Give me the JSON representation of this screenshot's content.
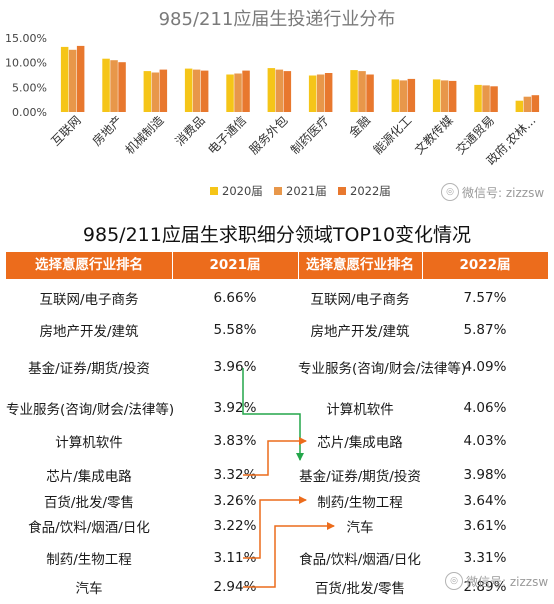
{
  "chart_data": {
    "type": "bar",
    "title": "985/211应届生投递行业分布",
    "categories": [
      "互联网",
      "房地产",
      "机械制造",
      "消费品",
      "电子通信",
      "服务外包",
      "制药医疗",
      "金融",
      "能源化工",
      "文教传媒",
      "交通贸易",
      "政府,农林..."
    ],
    "series": [
      {
        "name": "2020届",
        "color": "#f5c518",
        "values": [
          13.2,
          10.8,
          8.3,
          8.8,
          7.6,
          8.9,
          7.4,
          8.5,
          6.6,
          6.6,
          5.5,
          2.3
        ]
      },
      {
        "name": "2021届",
        "color": "#e8974a",
        "values": [
          12.6,
          10.5,
          8.0,
          8.6,
          7.8,
          8.6,
          7.6,
          8.3,
          6.4,
          6.4,
          5.4,
          3.1
        ]
      },
      {
        "name": "2022届",
        "color": "#e8782e",
        "values": [
          13.4,
          10.1,
          8.6,
          8.4,
          8.4,
          8.3,
          7.9,
          7.6,
          6.7,
          6.3,
          5.2,
          3.4
        ]
      }
    ],
    "y_ticks": [
      "15.00%",
      "10.00%",
      "5.00%",
      "0.00%"
    ],
    "ylim": [
      0,
      15
    ],
    "legend_placement": "bottom"
  },
  "watermark": "微信号: zizzsw",
  "table": {
    "title": "985/211应届生求职细分领域TOP10变化情况",
    "header": {
      "col1": "选择意愿行业排名",
      "col2": "2021届",
      "col3": "选择意愿行业排名",
      "col4": "2022届"
    },
    "header_color": "#ec6c1c",
    "rows": [
      {
        "a": "互联网/电子商务",
        "av": "6.66%",
        "b": "互联网/电子商务",
        "bv": "7.57%"
      },
      {
        "a": "房地产开发/建筑",
        "av": "5.58%",
        "b": "房地产开发/建筑",
        "bv": "5.87%"
      },
      {
        "a": "基金/证券/期货/投资",
        "av": "3.96%",
        "b": "专业服务(咨询/财会/法律等)",
        "bv": "4.09%"
      },
      {
        "a": "专业服务(咨询/财会/法律等)",
        "av": "3.92%",
        "b": "计算机软件",
        "bv": "4.06%"
      },
      {
        "a": "计算机软件",
        "av": "3.83%",
        "b": "芯片/集成电路",
        "bv": "4.03%"
      },
      {
        "a": "芯片/集成电路",
        "av": "3.32%",
        "b": "基金/证券/期货/投资",
        "bv": "3.98%"
      },
      {
        "a": "百货/批发/零售",
        "av": "3.26%",
        "b": "制药/生物工程",
        "bv": "3.64%"
      },
      {
        "a": "食品/饮料/烟酒/日化",
        "av": "3.22%",
        "b": "汽车",
        "bv": "3.61%"
      },
      {
        "a": "制药/生物工程",
        "av": "3.11%",
        "b": "食品/饮料/烟酒/日化",
        "bv": "3.31%"
      },
      {
        "a": "汽车",
        "av": "2.94%",
        "b": "百货/批发/零售",
        "bv": "2.89%"
      }
    ],
    "arrow_colors": {
      "down": "#23a64a",
      "up": "#ec6c1c"
    }
  }
}
